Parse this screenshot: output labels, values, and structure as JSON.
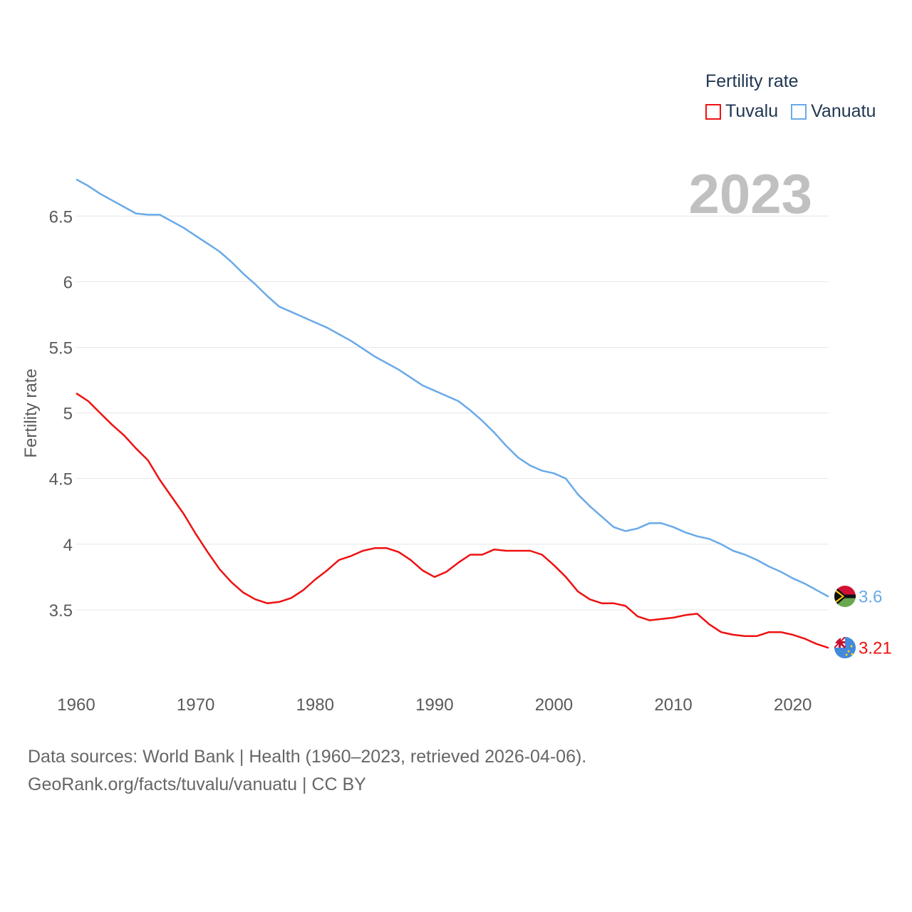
{
  "legend": {
    "title": "Fertility rate",
    "items": [
      {
        "label": "Tuvalu",
        "color": "#ee1111"
      },
      {
        "label": "Vanuatu",
        "color": "#6aaae8"
      }
    ]
  },
  "year_watermark": "2023",
  "source": {
    "line1": "Data sources: World Bank | Health (1960–2023, retrieved 2026-04-06).",
    "line2": "GeoRank.org/facts/tuvalu/vanuatu | CC BY"
  },
  "chart_data": {
    "type": "line",
    "title": "Fertility rate",
    "xlabel": "",
    "ylabel": "Fertility rate",
    "xlim": [
      1960,
      2023
    ],
    "ylim": [
      3.0,
      6.8
    ],
    "x_ticks": [
      1960,
      1970,
      1980,
      1990,
      2000,
      2010,
      2020
    ],
    "y_ticks": [
      3.5,
      4,
      4.5,
      5,
      5.5,
      6,
      6.5
    ],
    "x": [
      1960,
      1961,
      1962,
      1963,
      1964,
      1965,
      1966,
      1967,
      1968,
      1969,
      1970,
      1971,
      1972,
      1973,
      1974,
      1975,
      1976,
      1977,
      1978,
      1979,
      1980,
      1981,
      1982,
      1983,
      1984,
      1985,
      1986,
      1987,
      1988,
      1989,
      1990,
      1991,
      1992,
      1993,
      1994,
      1995,
      1996,
      1997,
      1998,
      1999,
      2000,
      2001,
      2002,
      2003,
      2004,
      2005,
      2006,
      2007,
      2008,
      2009,
      2010,
      2011,
      2012,
      2013,
      2014,
      2015,
      2016,
      2017,
      2018,
      2019,
      2020,
      2021,
      2022,
      2023
    ],
    "series": [
      {
        "name": "Vanuatu",
        "color": "#6aaae8",
        "end_label": "3.6",
        "values": [
          6.78,
          6.73,
          6.67,
          6.62,
          6.57,
          6.52,
          6.51,
          6.51,
          6.46,
          6.41,
          6.35,
          6.29,
          6.23,
          6.15,
          6.06,
          5.98,
          5.89,
          5.81,
          5.77,
          5.73,
          5.69,
          5.65,
          5.6,
          5.55,
          5.49,
          5.43,
          5.38,
          5.33,
          5.27,
          5.21,
          5.17,
          5.13,
          5.09,
          5.02,
          4.94,
          4.85,
          4.75,
          4.66,
          4.6,
          4.56,
          4.54,
          4.5,
          4.38,
          4.29,
          4.21,
          4.13,
          4.1,
          4.12,
          4.16,
          4.16,
          4.13,
          4.09,
          4.06,
          4.04,
          4.0,
          3.95,
          3.92,
          3.88,
          3.83,
          3.79,
          3.74,
          3.7,
          3.65,
          3.6
        ]
      },
      {
        "name": "Tuvalu",
        "color": "#ee1111",
        "end_label": "3.21",
        "values": [
          5.15,
          5.09,
          5.0,
          4.91,
          4.83,
          4.73,
          4.64,
          4.49,
          4.36,
          4.23,
          4.08,
          3.94,
          3.81,
          3.71,
          3.63,
          3.58,
          3.55,
          3.56,
          3.59,
          3.65,
          3.73,
          3.8,
          3.88,
          3.91,
          3.95,
          3.97,
          3.97,
          3.94,
          3.88,
          3.8,
          3.75,
          3.79,
          3.86,
          3.92,
          3.92,
          3.96,
          3.95,
          3.95,
          3.95,
          3.92,
          3.84,
          3.75,
          3.64,
          3.58,
          3.55,
          3.55,
          3.53,
          3.45,
          3.42,
          3.43,
          3.44,
          3.46,
          3.47,
          3.39,
          3.33,
          3.31,
          3.3,
          3.3,
          3.33,
          3.33,
          3.31,
          3.28,
          3.24,
          3.21
        ]
      }
    ]
  }
}
